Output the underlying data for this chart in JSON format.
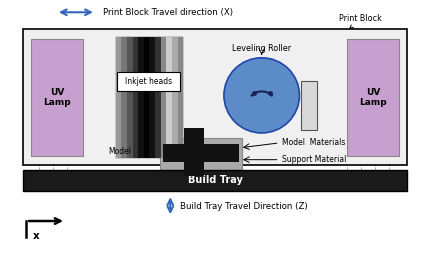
{
  "bg_color": "#ffffff",
  "uv_lamp_color": "#c8a0d0",
  "build_tray_color": "#1a1a1a",
  "model_base_color": "#aaaaaa",
  "roller_color": "#5b8cc8",
  "title_text": "Print Block Travel direction (X)",
  "build_tray_text": "Build Tray",
  "build_tray_travel_text": "Build Tray Travel Direction (Z)",
  "print_block_label": "Print Block",
  "model_label": "Model",
  "model_materials_label": "Model  Materials",
  "support_material_label": "Support Material",
  "leveling_roller_label": "Leveling Roller",
  "inkjet_label": "Inkjet heads",
  "uv_label": "UV\nLamp",
  "x_label": "x",
  "arrow_blue": "#3366bb",
  "arrow_black": "#000000"
}
